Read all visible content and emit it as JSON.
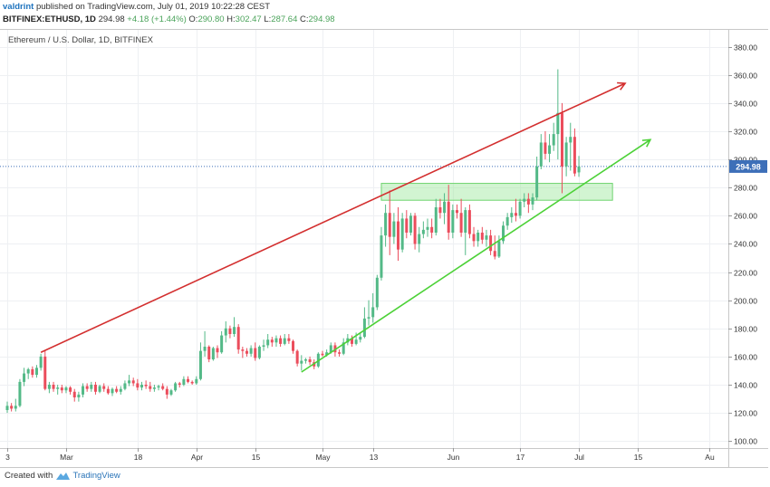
{
  "header": {
    "author": "valdrint",
    "publish_text": "published on TradingView.com, July 01, 2019 10:22:28 CEST",
    "symbol": "BITFINEX:ETHUSD, 1D",
    "last": "294.98",
    "change": "+4.18 (+1.44%)",
    "open_label": "O:",
    "open": "290.80",
    "high_label": "H:",
    "high": "302.47",
    "low_label": "L:",
    "low": "287.64",
    "close_label": "C:",
    "close": "294.98"
  },
  "footer": {
    "created_with": "Created with",
    "brand": "TradingView"
  },
  "chart_data": {
    "type": "candlestick",
    "title": "Ethereum / U.S. Dollar, 1D, BITFINEX",
    "y_ticks": [
      100,
      120,
      140,
      160,
      180,
      200,
      220,
      240,
      260,
      280,
      300,
      320,
      340,
      360,
      380
    ],
    "y_range": [
      95,
      392
    ],
    "x_range": [
      "2019-02-15",
      "2019-08-01"
    ],
    "x_ticks": [
      {
        "label": "3",
        "date": "2019-02-15"
      },
      {
        "label": "Mar",
        "date": "2019-03-01"
      },
      {
        "label": "18",
        "date": "2019-03-18"
      },
      {
        "label": "Apr",
        "date": "2019-04-01"
      },
      {
        "label": "15",
        "date": "2019-04-15"
      },
      {
        "label": "May",
        "date": "2019-05-01"
      },
      {
        "label": "13",
        "date": "2019-05-13"
      },
      {
        "label": "Jun",
        "date": "2019-06-01"
      },
      {
        "label": "17",
        "date": "2019-06-17"
      },
      {
        "label": "Jul",
        "date": "2019-07-01"
      },
      {
        "label": "15",
        "date": "2019-07-15"
      },
      {
        "label": "Au",
        "date": "2019-08-01"
      }
    ],
    "last_price": 294.98,
    "colors": {
      "up": "#53b987",
      "down": "#eb4d5c",
      "resistance": "#d32f2f",
      "support": "#4cd137",
      "zone": "#9be79b",
      "price_line": "#3d6fb8"
    },
    "candles": [
      {
        "date": "2019-02-15",
        "o": 122,
        "h": 128,
        "l": 120,
        "c": 125
      },
      {
        "date": "2019-02-16",
        "o": 125,
        "h": 127,
        "l": 121,
        "c": 123
      },
      {
        "date": "2019-02-17",
        "o": 123,
        "h": 130,
        "l": 121,
        "c": 125
      },
      {
        "date": "2019-02-18",
        "o": 125,
        "h": 144,
        "l": 124,
        "c": 142
      },
      {
        "date": "2019-02-19",
        "o": 142,
        "h": 152,
        "l": 139,
        "c": 148
      },
      {
        "date": "2019-02-20",
        "o": 148,
        "h": 152,
        "l": 144,
        "c": 151
      },
      {
        "date": "2019-02-21",
        "o": 151,
        "h": 153,
        "l": 145,
        "c": 147
      },
      {
        "date": "2019-02-22",
        "o": 147,
        "h": 154,
        "l": 145,
        "c": 152
      },
      {
        "date": "2019-02-23",
        "o": 152,
        "h": 162,
        "l": 150,
        "c": 160
      },
      {
        "date": "2019-02-24",
        "o": 160,
        "h": 164,
        "l": 136,
        "c": 137
      },
      {
        "date": "2019-02-25",
        "o": 137,
        "h": 142,
        "l": 134,
        "c": 140
      },
      {
        "date": "2019-02-26",
        "o": 140,
        "h": 142,
        "l": 135,
        "c": 137
      },
      {
        "date": "2019-02-27",
        "o": 137,
        "h": 140,
        "l": 133,
        "c": 138
      },
      {
        "date": "2019-02-28",
        "o": 138,
        "h": 140,
        "l": 134,
        "c": 136
      },
      {
        "date": "2019-03-01",
        "o": 136,
        "h": 139,
        "l": 134,
        "c": 138
      },
      {
        "date": "2019-03-02",
        "o": 138,
        "h": 139,
        "l": 133,
        "c": 135
      },
      {
        "date": "2019-03-03",
        "o": 135,
        "h": 137,
        "l": 128,
        "c": 131
      },
      {
        "date": "2019-03-04",
        "o": 131,
        "h": 135,
        "l": 128,
        "c": 133
      },
      {
        "date": "2019-03-05",
        "o": 133,
        "h": 141,
        "l": 131,
        "c": 139
      },
      {
        "date": "2019-03-06",
        "o": 139,
        "h": 141,
        "l": 135,
        "c": 137
      },
      {
        "date": "2019-03-07",
        "o": 137,
        "h": 142,
        "l": 135,
        "c": 140
      },
      {
        "date": "2019-03-08",
        "o": 140,
        "h": 142,
        "l": 133,
        "c": 135
      },
      {
        "date": "2019-03-09",
        "o": 135,
        "h": 140,
        "l": 134,
        "c": 139
      },
      {
        "date": "2019-03-10",
        "o": 139,
        "h": 141,
        "l": 135,
        "c": 137
      },
      {
        "date": "2019-03-11",
        "o": 137,
        "h": 139,
        "l": 133,
        "c": 134
      },
      {
        "date": "2019-03-12",
        "o": 134,
        "h": 138,
        "l": 132,
        "c": 137
      },
      {
        "date": "2019-03-13",
        "o": 137,
        "h": 139,
        "l": 134,
        "c": 135
      },
      {
        "date": "2019-03-14",
        "o": 135,
        "h": 139,
        "l": 133,
        "c": 137
      },
      {
        "date": "2019-03-15",
        "o": 137,
        "h": 143,
        "l": 136,
        "c": 141
      },
      {
        "date": "2019-03-16",
        "o": 141,
        "h": 147,
        "l": 139,
        "c": 143
      },
      {
        "date": "2019-03-17",
        "o": 143,
        "h": 145,
        "l": 139,
        "c": 141
      },
      {
        "date": "2019-03-18",
        "o": 141,
        "h": 144,
        "l": 136,
        "c": 138
      },
      {
        "date": "2019-03-19",
        "o": 138,
        "h": 142,
        "l": 136,
        "c": 140
      },
      {
        "date": "2019-03-20",
        "o": 140,
        "h": 143,
        "l": 137,
        "c": 139
      },
      {
        "date": "2019-03-21",
        "o": 139,
        "h": 142,
        "l": 135,
        "c": 137
      },
      {
        "date": "2019-03-22",
        "o": 137,
        "h": 140,
        "l": 135,
        "c": 138
      },
      {
        "date": "2019-03-23",
        "o": 138,
        "h": 140,
        "l": 136,
        "c": 139
      },
      {
        "date": "2019-03-24",
        "o": 139,
        "h": 141,
        "l": 136,
        "c": 137
      },
      {
        "date": "2019-03-25",
        "o": 137,
        "h": 139,
        "l": 130,
        "c": 133
      },
      {
        "date": "2019-03-26",
        "o": 133,
        "h": 137,
        "l": 132,
        "c": 136
      },
      {
        "date": "2019-03-27",
        "o": 136,
        "h": 142,
        "l": 135,
        "c": 141
      },
      {
        "date": "2019-03-28",
        "o": 141,
        "h": 142,
        "l": 138,
        "c": 140
      },
      {
        "date": "2019-03-29",
        "o": 140,
        "h": 146,
        "l": 139,
        "c": 144
      },
      {
        "date": "2019-03-30",
        "o": 144,
        "h": 146,
        "l": 141,
        "c": 142
      },
      {
        "date": "2019-03-31",
        "o": 142,
        "h": 143,
        "l": 140,
        "c": 141
      },
      {
        "date": "2019-04-01",
        "o": 141,
        "h": 146,
        "l": 140,
        "c": 144
      },
      {
        "date": "2019-04-02",
        "o": 144,
        "h": 170,
        "l": 143,
        "c": 164
      },
      {
        "date": "2019-04-03",
        "o": 164,
        "h": 178,
        "l": 160,
        "c": 167
      },
      {
        "date": "2019-04-04",
        "o": 167,
        "h": 168,
        "l": 156,
        "c": 158
      },
      {
        "date": "2019-04-05",
        "o": 158,
        "h": 167,
        "l": 157,
        "c": 166
      },
      {
        "date": "2019-04-06",
        "o": 166,
        "h": 168,
        "l": 159,
        "c": 163
      },
      {
        "date": "2019-04-07",
        "o": 163,
        "h": 178,
        "l": 162,
        "c": 175
      },
      {
        "date": "2019-04-08",
        "o": 175,
        "h": 185,
        "l": 170,
        "c": 180
      },
      {
        "date": "2019-04-09",
        "o": 180,
        "h": 182,
        "l": 173,
        "c": 176
      },
      {
        "date": "2019-04-10",
        "o": 176,
        "h": 188,
        "l": 174,
        "c": 181
      },
      {
        "date": "2019-04-11",
        "o": 181,
        "h": 183,
        "l": 162,
        "c": 165
      },
      {
        "date": "2019-04-12",
        "o": 165,
        "h": 167,
        "l": 159,
        "c": 164
      },
      {
        "date": "2019-04-13",
        "o": 164,
        "h": 166,
        "l": 160,
        "c": 162
      },
      {
        "date": "2019-04-14",
        "o": 162,
        "h": 168,
        "l": 160,
        "c": 166
      },
      {
        "date": "2019-04-15",
        "o": 166,
        "h": 170,
        "l": 157,
        "c": 159
      },
      {
        "date": "2019-04-16",
        "o": 159,
        "h": 168,
        "l": 158,
        "c": 167
      },
      {
        "date": "2019-04-17",
        "o": 167,
        "h": 172,
        "l": 164,
        "c": 168
      },
      {
        "date": "2019-04-18",
        "o": 168,
        "h": 176,
        "l": 166,
        "c": 172
      },
      {
        "date": "2019-04-19",
        "o": 172,
        "h": 174,
        "l": 167,
        "c": 170
      },
      {
        "date": "2019-04-20",
        "o": 170,
        "h": 175,
        "l": 167,
        "c": 173
      },
      {
        "date": "2019-04-21",
        "o": 173,
        "h": 175,
        "l": 167,
        "c": 169
      },
      {
        "date": "2019-04-22",
        "o": 169,
        "h": 176,
        "l": 168,
        "c": 173
      },
      {
        "date": "2019-04-23",
        "o": 173,
        "h": 176,
        "l": 169,
        "c": 171
      },
      {
        "date": "2019-04-24",
        "o": 171,
        "h": 172,
        "l": 162,
        "c": 164
      },
      {
        "date": "2019-04-25",
        "o": 164,
        "h": 165,
        "l": 153,
        "c": 155
      },
      {
        "date": "2019-04-26",
        "o": 155,
        "h": 161,
        "l": 150,
        "c": 157
      },
      {
        "date": "2019-04-27",
        "o": 157,
        "h": 159,
        "l": 155,
        "c": 158
      },
      {
        "date": "2019-04-28",
        "o": 158,
        "h": 160,
        "l": 154,
        "c": 156
      },
      {
        "date": "2019-04-29",
        "o": 156,
        "h": 158,
        "l": 151,
        "c": 153
      },
      {
        "date": "2019-04-30",
        "o": 153,
        "h": 163,
        "l": 152,
        "c": 162
      },
      {
        "date": "2019-05-01",
        "o": 162,
        "h": 164,
        "l": 160,
        "c": 161
      },
      {
        "date": "2019-05-02",
        "o": 161,
        "h": 165,
        "l": 160,
        "c": 163
      },
      {
        "date": "2019-05-03",
        "o": 163,
        "h": 170,
        "l": 162,
        "c": 168
      },
      {
        "date": "2019-05-04",
        "o": 168,
        "h": 170,
        "l": 160,
        "c": 163
      },
      {
        "date": "2019-05-05",
        "o": 163,
        "h": 165,
        "l": 160,
        "c": 162
      },
      {
        "date": "2019-05-06",
        "o": 162,
        "h": 173,
        "l": 161,
        "c": 170
      },
      {
        "date": "2019-05-07",
        "o": 170,
        "h": 176,
        "l": 168,
        "c": 173
      },
      {
        "date": "2019-05-08",
        "o": 173,
        "h": 175,
        "l": 167,
        "c": 169
      },
      {
        "date": "2019-05-09",
        "o": 169,
        "h": 177,
        "l": 168,
        "c": 172
      },
      {
        "date": "2019-05-10",
        "o": 172,
        "h": 177,
        "l": 170,
        "c": 174
      },
      {
        "date": "2019-05-11",
        "o": 174,
        "h": 195,
        "l": 173,
        "c": 187
      },
      {
        "date": "2019-05-12",
        "o": 187,
        "h": 200,
        "l": 182,
        "c": 188
      },
      {
        "date": "2019-05-13",
        "o": 188,
        "h": 205,
        "l": 184,
        "c": 195
      },
      {
        "date": "2019-05-14",
        "o": 195,
        "h": 218,
        "l": 193,
        "c": 216
      },
      {
        "date": "2019-05-15",
        "o": 216,
        "h": 252,
        "l": 214,
        "c": 246
      },
      {
        "date": "2019-05-16",
        "o": 246,
        "h": 268,
        "l": 238,
        "c": 262
      },
      {
        "date": "2019-05-17",
        "o": 262,
        "h": 278,
        "l": 232,
        "c": 245
      },
      {
        "date": "2019-05-18",
        "o": 245,
        "h": 262,
        "l": 240,
        "c": 256
      },
      {
        "date": "2019-05-19",
        "o": 256,
        "h": 266,
        "l": 228,
        "c": 236
      },
      {
        "date": "2019-05-20",
        "o": 236,
        "h": 262,
        "l": 234,
        "c": 258
      },
      {
        "date": "2019-05-21",
        "o": 258,
        "h": 264,
        "l": 244,
        "c": 248
      },
      {
        "date": "2019-05-22",
        "o": 248,
        "h": 262,
        "l": 246,
        "c": 260
      },
      {
        "date": "2019-05-23",
        "o": 260,
        "h": 262,
        "l": 236,
        "c": 240
      },
      {
        "date": "2019-05-24",
        "o": 240,
        "h": 252,
        "l": 234,
        "c": 247
      },
      {
        "date": "2019-05-25",
        "o": 247,
        "h": 256,
        "l": 244,
        "c": 250
      },
      {
        "date": "2019-05-26",
        "o": 250,
        "h": 258,
        "l": 245,
        "c": 252
      },
      {
        "date": "2019-05-27",
        "o": 252,
        "h": 258,
        "l": 244,
        "c": 248
      },
      {
        "date": "2019-05-28",
        "o": 248,
        "h": 272,
        "l": 246,
        "c": 266
      },
      {
        "date": "2019-05-29",
        "o": 266,
        "h": 272,
        "l": 258,
        "c": 262
      },
      {
        "date": "2019-05-30",
        "o": 262,
        "h": 276,
        "l": 254,
        "c": 270
      },
      {
        "date": "2019-05-31",
        "o": 270,
        "h": 282,
        "l": 243,
        "c": 248
      },
      {
        "date": "2019-06-01",
        "o": 248,
        "h": 268,
        "l": 244,
        "c": 264
      },
      {
        "date": "2019-06-02",
        "o": 264,
        "h": 268,
        "l": 258,
        "c": 262
      },
      {
        "date": "2019-06-03",
        "o": 262,
        "h": 272,
        "l": 245,
        "c": 248
      },
      {
        "date": "2019-06-04",
        "o": 248,
        "h": 266,
        "l": 232,
        "c": 264
      },
      {
        "date": "2019-06-05",
        "o": 264,
        "h": 268,
        "l": 244,
        "c": 247
      },
      {
        "date": "2019-06-06",
        "o": 247,
        "h": 252,
        "l": 238,
        "c": 242
      },
      {
        "date": "2019-06-07",
        "o": 242,
        "h": 250,
        "l": 238,
        "c": 248
      },
      {
        "date": "2019-06-08",
        "o": 248,
        "h": 252,
        "l": 240,
        "c": 243
      },
      {
        "date": "2019-06-09",
        "o": 243,
        "h": 250,
        "l": 238,
        "c": 246
      },
      {
        "date": "2019-06-10",
        "o": 246,
        "h": 250,
        "l": 232,
        "c": 235
      },
      {
        "date": "2019-06-11",
        "o": 235,
        "h": 246,
        "l": 229,
        "c": 231
      },
      {
        "date": "2019-06-12",
        "o": 231,
        "h": 246,
        "l": 230,
        "c": 242
      },
      {
        "date": "2019-06-13",
        "o": 242,
        "h": 256,
        "l": 240,
        "c": 253
      },
      {
        "date": "2019-06-14",
        "o": 253,
        "h": 262,
        "l": 250,
        "c": 259
      },
      {
        "date": "2019-06-15",
        "o": 259,
        "h": 266,
        "l": 255,
        "c": 262
      },
      {
        "date": "2019-06-16",
        "o": 262,
        "h": 272,
        "l": 256,
        "c": 260
      },
      {
        "date": "2019-06-17",
        "o": 260,
        "h": 272,
        "l": 258,
        "c": 270
      },
      {
        "date": "2019-06-18",
        "o": 270,
        "h": 276,
        "l": 266,
        "c": 272
      },
      {
        "date": "2019-06-19",
        "o": 272,
        "h": 276,
        "l": 262,
        "c": 268
      },
      {
        "date": "2019-06-20",
        "o": 268,
        "h": 276,
        "l": 264,
        "c": 273
      },
      {
        "date": "2019-06-21",
        "o": 273,
        "h": 302,
        "l": 271,
        "c": 295
      },
      {
        "date": "2019-06-22",
        "o": 295,
        "h": 318,
        "l": 293,
        "c": 312
      },
      {
        "date": "2019-06-23",
        "o": 312,
        "h": 320,
        "l": 300,
        "c": 304
      },
      {
        "date": "2019-06-24",
        "o": 304,
        "h": 318,
        "l": 298,
        "c": 310
      },
      {
        "date": "2019-06-25",
        "o": 310,
        "h": 326,
        "l": 306,
        "c": 318
      },
      {
        "date": "2019-06-26",
        "o": 318,
        "h": 364,
        "l": 300,
        "c": 333
      },
      {
        "date": "2019-06-27",
        "o": 333,
        "h": 340,
        "l": 276,
        "c": 295
      },
      {
        "date": "2019-06-28",
        "o": 295,
        "h": 316,
        "l": 288,
        "c": 312
      },
      {
        "date": "2019-06-29",
        "o": 312,
        "h": 326,
        "l": 292,
        "c": 316
      },
      {
        "date": "2019-06-30",
        "o": 316,
        "h": 322,
        "l": 288,
        "c": 290
      },
      {
        "date": "2019-07-01",
        "o": 290.8,
        "h": 302.47,
        "l": 287.64,
        "c": 294.98
      }
    ],
    "annotations": [
      {
        "type": "trendline",
        "role": "resistance",
        "from": {
          "date": "2019-02-23",
          "price": 163
        },
        "to": {
          "date": "2019-07-12",
          "price": 354
        },
        "arrow": true
      },
      {
        "type": "trendline",
        "role": "support",
        "from": {
          "date": "2019-04-26",
          "price": 149
        },
        "to": {
          "date": "2019-07-18",
          "price": 314
        },
        "arrow": true
      },
      {
        "type": "rectangle",
        "role": "zone",
        "from": {
          "date": "2019-05-15",
          "price": 271
        },
        "to": {
          "date": "2019-07-09",
          "price": 283
        }
      }
    ]
  }
}
